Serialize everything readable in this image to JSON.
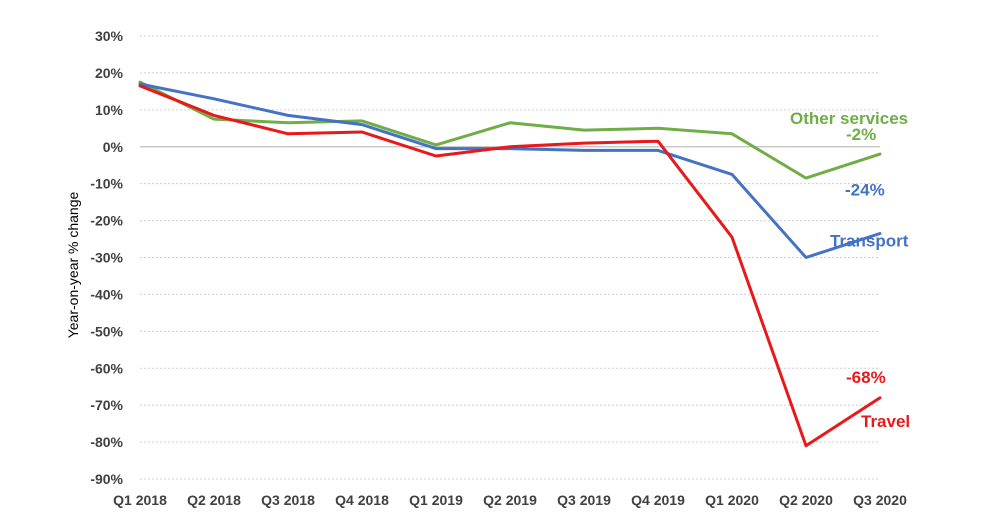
{
  "chart_data": {
    "type": "line",
    "ylabel": "Year-on-year % change",
    "xlabel": "",
    "ylim": [
      -90,
      30
    ],
    "yticks": [
      30,
      20,
      10,
      0,
      -10,
      -20,
      -30,
      -40,
      -50,
      -60,
      -70,
      -80,
      -90
    ],
    "ytick_labels": [
      "30%",
      "20%",
      "10%",
      "0%",
      "-10%",
      "-20%",
      "-30%",
      "-40%",
      "-50%",
      "-60%",
      "-70%",
      "-80%",
      "-90%"
    ],
    "categories": [
      "Q1 2018",
      "Q2 2018",
      "Q3 2018",
      "Q4 2018",
      "Q1 2019",
      "Q2 2019",
      "Q3 2019",
      "Q4 2019",
      "Q1 2020",
      "Q2 2020",
      "Q3 2020"
    ],
    "grid": true,
    "legend": "none",
    "series": [
      {
        "name": "Other services",
        "color": "#70ad47",
        "values": [
          17.5,
          7.5,
          6.5,
          7.0,
          0.5,
          6.5,
          4.5,
          5.0,
          3.5,
          -8.5,
          -2.0
        ],
        "end_label": "-2%"
      },
      {
        "name": "Transport",
        "color": "#4472c4",
        "values": [
          17.0,
          13.0,
          8.5,
          6.0,
          -0.5,
          -0.5,
          -1.0,
          -1.0,
          -7.5,
          -30.0,
          -23.5
        ],
        "end_label": "-24%"
      },
      {
        "name": "Travel",
        "color": "#e8191c",
        "values": [
          16.5,
          8.5,
          3.5,
          4.0,
          -2.5,
          0.0,
          1.0,
          1.5,
          -24.5,
          -81.0,
          -68.0
        ],
        "end_label": "-68%"
      }
    ]
  }
}
